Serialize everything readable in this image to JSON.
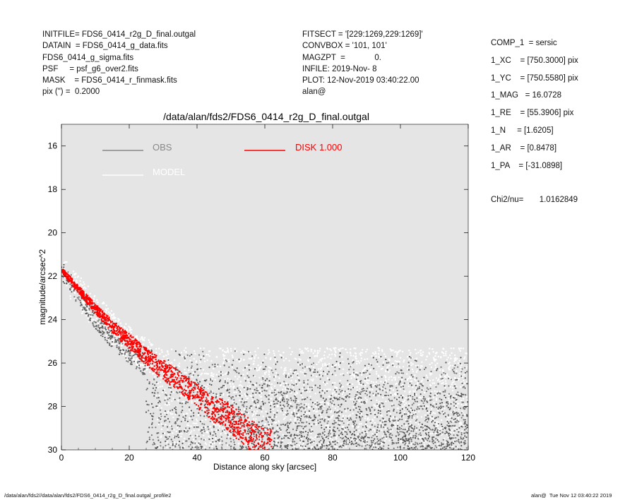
{
  "header_left": [
    "INITFILE= FDS6_0414_r2g_D_final.outgal",
    "DATAIN  = FDS6_0414_g_data.fits",
    "FDS6_0414_g_sigma.fits",
    "PSF     = psf_g6_over2.fits",
    "MASK    = FDS6_0414_r_finmask.fits",
    "pix (\") =  0.2000"
  ],
  "header_mid": [
    "FITSECT = '[229:1269,229:1269]'",
    "CONVBOX = '101, 101'",
    "MAGZPT  =             0.",
    "INFILE: 2019-Nov- 8",
    "PLOT: 12-Nov-2019 03:40:22.00",
    "alan@"
  ],
  "header_right": [
    "COMP_1  = sersic",
    "1_XC    = [750.3000] pix",
    "1_YC    = [750.5580] pix",
    "1_MAG   = 16.0728",
    "1_RE    = [55.3906] pix",
    "1_N     = [1.6205]",
    "1_AR    = [0.8478]",
    "1_PA    = [-31.0898]"
  ],
  "chi2": "Chi2/nu=       1.0162849",
  "footer_left": "/data/alan/fds2//data/alan/fds2/FDS6_0414_r2g_D_final.outgal_profile2",
  "footer_right": "alan@  Tue Nov 12 03:40:22 2019",
  "chart_data": {
    "type": "scatter",
    "title": "/data/alan/fds2/FDS6_0414_r2g_D_final.outgal",
    "xlabel": "Distance along sky [arcsec]",
    "ylabel": "magnitude/arcsec^2",
    "xlim": [
      0,
      120
    ],
    "ylim": [
      30,
      15
    ],
    "y_inverted": true,
    "xticks": [
      "0",
      "20",
      "40",
      "60",
      "80",
      "100",
      "120"
    ],
    "yticks": [
      "16",
      "18",
      "20",
      "22",
      "24",
      "26",
      "28",
      "30"
    ],
    "background": "#e5e5e5",
    "legend": [
      {
        "name": "OBS",
        "color": "#888888"
      },
      {
        "name": "MODEL",
        "color": "#ffffff"
      },
      {
        "name": "DISK  1.000",
        "color": "#ff0000"
      }
    ],
    "series": [
      {
        "name": "OBS",
        "color": "#555555",
        "x": [
          0,
          5,
          10,
          15,
          20,
          25,
          30,
          40,
          50,
          60,
          80,
          100,
          120
        ],
        "y": [
          21.5,
          22.7,
          23.8,
          24.7,
          25.4,
          26.0,
          26.6,
          27.7,
          28.6,
          29.3,
          28.2,
          27.8,
          27.4
        ]
      },
      {
        "name": "MODEL",
        "color": "#ffffff",
        "x": [
          0,
          10,
          20,
          30,
          40,
          50,
          60,
          80,
          100,
          120
        ],
        "y": [
          21.6,
          23.4,
          24.9,
          25.9,
          26.5,
          26.6,
          26.8,
          26.7,
          26.8,
          26.9
        ]
      },
      {
        "name": "DISK  1.000",
        "color": "#ff0000",
        "x": [
          0,
          5,
          10,
          15,
          20,
          25,
          30,
          35,
          40,
          45,
          50,
          55,
          60
        ],
        "y": [
          21.7,
          22.6,
          23.5,
          24.3,
          25.0,
          25.7,
          26.3,
          26.9,
          27.5,
          28.1,
          28.6,
          29.2,
          29.8
        ]
      }
    ]
  }
}
